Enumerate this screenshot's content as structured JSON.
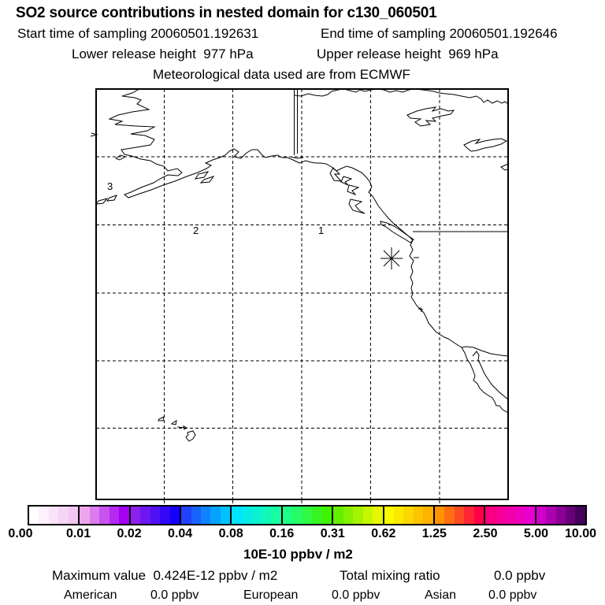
{
  "header": {
    "title": "SO2 source contributions in nested domain for c130_060501",
    "start_time": "Start time of sampling 20060501.192631",
    "end_time": "End time of sampling 20060501.192646",
    "lower_release": "Lower release height  977 hPa",
    "upper_release": "Upper release height  969 hPa",
    "met_source": "Meteorological data used are from ECMWF"
  },
  "map": {
    "day_labels": [
      "1",
      "2",
      "3"
    ],
    "marker": "receptor-asterisk"
  },
  "colorbar": {
    "ticks": [
      "0.00",
      "0.01",
      "0.02",
      "0.04",
      "0.08",
      "0.16",
      "0.31",
      "0.62",
      "1.25",
      "2.50",
      "5.00",
      "10.00"
    ],
    "units": "10E-10 ppbv / m2",
    "segments": [
      {
        "start": "#ffffff",
        "end": "#f2c6f2"
      },
      {
        "start": "#eda5ed",
        "end": "#a400f2"
      },
      {
        "start": "#8c20ee",
        "end": "#1400fa"
      },
      {
        "start": "#2142fa",
        "end": "#00c2ff"
      },
      {
        "start": "#00e4ff",
        "end": "#18ffa2"
      },
      {
        "start": "#1eff88",
        "end": "#40f200"
      },
      {
        "start": "#64ee00",
        "end": "#e6f800"
      },
      {
        "start": "#fbfb00",
        "end": "#ffb200"
      },
      {
        "start": "#ff9400",
        "end": "#ff0048"
      },
      {
        "start": "#fa0080",
        "end": "#e800d2"
      },
      {
        "start": "#cf00cb",
        "end": "#47005c"
      }
    ]
  },
  "footer": {
    "max_line": "Maximum value  0.424E-12 ppbv / m2",
    "total_label": "Total mixing ratio",
    "total_value": "0.0 ppbv",
    "regions": [
      {
        "name": "American",
        "value": "0.0 ppbv"
      },
      {
        "name": "European",
        "value": "0.0 ppbv"
      },
      {
        "name": "Asian",
        "value": "0.0 ppbv"
      }
    ]
  }
}
